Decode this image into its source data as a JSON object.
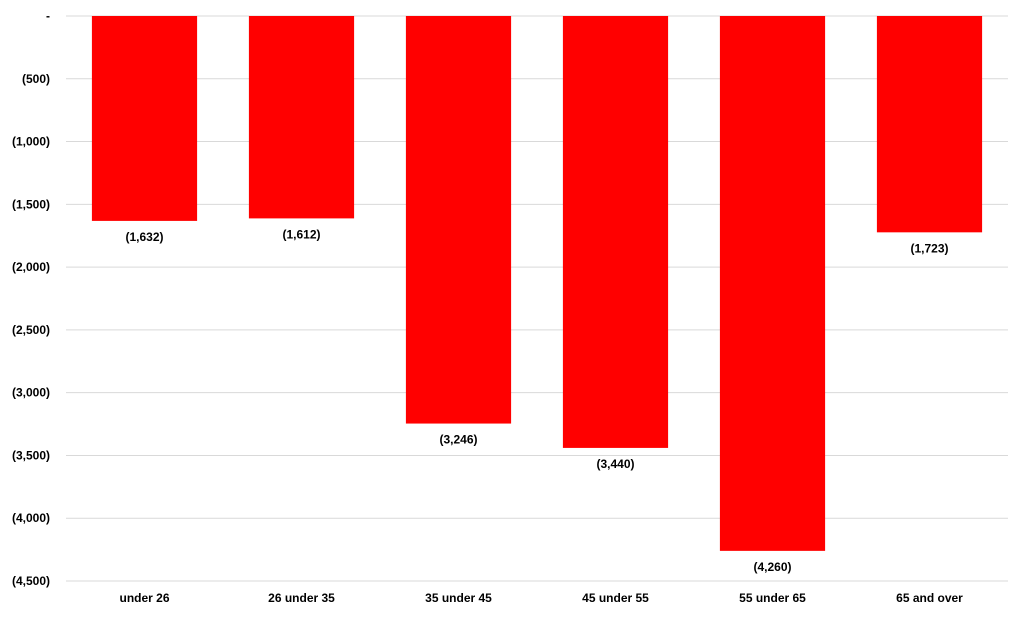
{
  "chart_data": {
    "type": "bar",
    "categories": [
      "under 26",
      "26 under 35",
      "35 under 45",
      "45 under 55",
      "55 under 65",
      "65 and over"
    ],
    "values": [
      -1632,
      -1612,
      -3246,
      -3440,
      -4260,
      -1723
    ],
    "data_labels": [
      "(1,632)",
      "(1,612)",
      "(3,246)",
      "(3,440)",
      "(4,260)",
      "(1,723)"
    ],
    "title": "",
    "xlabel": "",
    "ylabel": "",
    "ylim": [
      -4500,
      0
    ],
    "yticks": [
      0,
      -500,
      -1000,
      -1500,
      -2000,
      -2500,
      -3000,
      -3500,
      -4000,
      -4500
    ],
    "ytick_labels": [
      "-",
      "(500)",
      "(1,000)",
      "(1,500)",
      "(2,000)",
      "(2,500)",
      "(3,000)",
      "(3,500)",
      "(4,000)",
      "(4,500)"
    ],
    "grid": true,
    "legend": "none",
    "bar_color": "#ff0000",
    "grid_color": "#d9d9d9"
  }
}
